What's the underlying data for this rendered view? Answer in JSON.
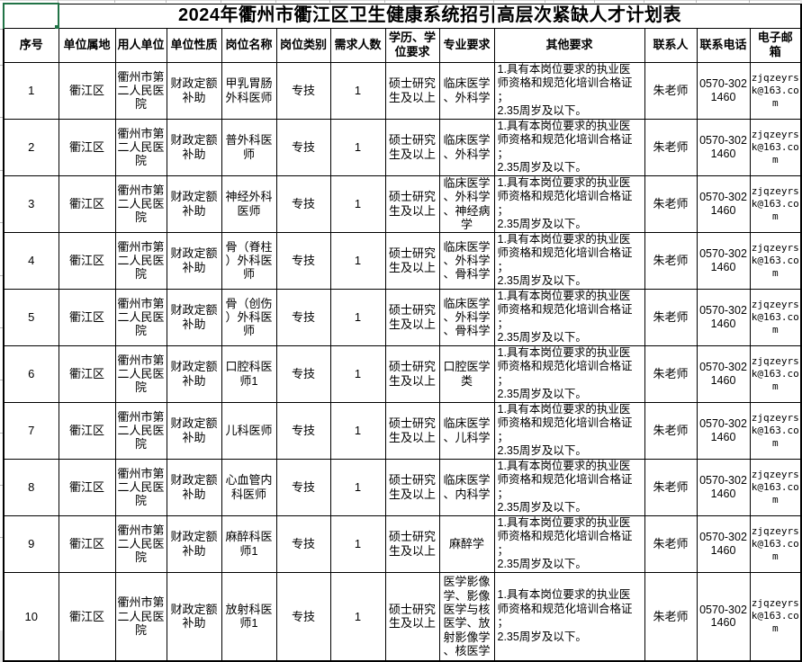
{
  "title": "2024年衢州市衢江区卫生健康系统招引高层次紧缺人才计划表",
  "selected_cell_value": "",
  "colors": {
    "selection_border_green": "#217346",
    "table_border": "#000000",
    "sheet_gridline_gray": "#b9b9b9"
  },
  "columns": [
    "序号",
    "单位属地",
    "用人单位",
    "单位性质",
    "岗位名称",
    "岗位类别",
    "需求人数",
    "学历、学\n位要求",
    "专业要求",
    "其他要求",
    "联系人",
    "联系电话",
    "电子邮箱"
  ],
  "rows": [
    {
      "no": "1",
      "area": "衢江区",
      "employer": "衢州市第\n二人民医\n院",
      "nature": "财政定额\n补助",
      "position": "甲乳胃肠\n外科医师",
      "category": "专技",
      "count": "1",
      "education": "硕士研究\n生及以上",
      "major": "临床医学\n、外科学",
      "other": "1.具有本岗位要求的执业医\n师资格和规范化培训合格证\n；\n2.35周岁及以下。",
      "contact": "朱老师",
      "phone": "0570-302\n1460",
      "email": "zjqzeyrs\nk@163.co\nm"
    },
    {
      "no": "2",
      "area": "衢江区",
      "employer": "衢州市第\n二人民医\n院",
      "nature": "财政定额\n补助",
      "position": "普外科医\n师",
      "category": "专技",
      "count": "1",
      "education": "硕士研究\n生及以上",
      "major": "临床医学\n、外科学",
      "other": "1.具有本岗位要求的执业医\n师资格和规范化培训合格证\n；\n2.35周岁及以下。",
      "contact": "朱老师",
      "phone": "0570-302\n1460",
      "email": "zjqzeyrs\nk@163.co\nm"
    },
    {
      "no": "3",
      "area": "衢江区",
      "employer": "衢州市第\n二人民医\n院",
      "nature": "财政定额\n补助",
      "position": "神经外科\n医师",
      "category": "专技",
      "count": "1",
      "education": "硕士研究\n生及以上",
      "major": "临床医学\n、外科学\n、神经病\n学",
      "other": "1.具有本岗位要求的执业医\n师资格和规范化培训合格证\n；\n2.35周岁及以下。",
      "contact": "朱老师",
      "phone": "0570-302\n1460",
      "email": "zjqzeyrs\nk@163.co\nm"
    },
    {
      "no": "4",
      "area": "衢江区",
      "employer": "衢州市第\n二人民医\n院",
      "nature": "财政定额\n补助",
      "position": "骨（脊柱\n）外科医\n师",
      "category": "专技",
      "count": "1",
      "education": "硕士研究\n生及以上",
      "major": "临床医学\n、外科学\n、骨科学",
      "other": "1.具有本岗位要求的执业医\n师资格和规范化培训合格证\n；\n2.35周岁及以下。",
      "contact": "朱老师",
      "phone": "0570-302\n1460",
      "email": "zjqzeyrs\nk@163.co\nm"
    },
    {
      "no": "5",
      "area": "衢江区",
      "employer": "衢州市第\n二人民医\n院",
      "nature": "财政定额\n补助",
      "position": "骨（创伤\n）外科医\n师",
      "category": "专技",
      "count": "1",
      "education": "硕士研究\n生及以上",
      "major": "临床医学\n、外科学\n、骨科学",
      "other": "1.具有本岗位要求的执业医\n师资格和规范化培训合格证\n；\n2.35周岁及以下。",
      "contact": "朱老师",
      "phone": "0570-302\n1460",
      "email": "zjqzeyrs\nk@163.co\nm"
    },
    {
      "no": "6",
      "area": "衢江区",
      "employer": "衢州市第\n二人民医\n院",
      "nature": "财政定额\n补助",
      "position": "口腔科医\n师1",
      "category": "专技",
      "count": "1",
      "education": "硕士研究\n生及以上",
      "major": "口腔医学\n类",
      "other": "1.具有本岗位要求的执业医\n师资格和规范化培训合格证\n；\n2.35周岁及以下。",
      "contact": "朱老师",
      "phone": "0570-302\n1460",
      "email": "zjqzeyrs\nk@163.co\nm"
    },
    {
      "no": "7",
      "area": "衢江区",
      "employer": "衢州市第\n二人民医\n院",
      "nature": "财政定额\n补助",
      "position": "儿科医师",
      "category": "专技",
      "count": "1",
      "education": "硕士研究\n生及以上",
      "major": "临床医学\n、儿科学",
      "other": "1.具有本岗位要求的执业医\n师资格和规范化培训合格证\n；\n2.35周岁及以下。",
      "contact": "朱老师",
      "phone": "0570-302\n1460",
      "email": "zjqzeyrs\nk@163.co\nm"
    },
    {
      "no": "8",
      "area": "衢江区",
      "employer": "衢州市第\n二人民医\n院",
      "nature": "财政定额\n补助",
      "position": "心血管内\n科医师",
      "category": "专技",
      "count": "1",
      "education": "硕士研究\n生及以上",
      "major": "临床医学\n、内科学",
      "other": "1.具有本岗位要求的执业医\n师资格和规范化培训合格证\n；\n2.35周岁及以下。",
      "contact": "朱老师",
      "phone": "0570-302\n1460",
      "email": "zjqzeyrs\nk@163.co\nm"
    },
    {
      "no": "9",
      "area": "衢江区",
      "employer": "衢州市第\n二人民医\n院",
      "nature": "财政定额\n补助",
      "position": "麻醉科医\n师1",
      "category": "专技",
      "count": "1",
      "education": "硕士研究\n生及以上",
      "major": "麻醉学",
      "other": "1.具有本岗位要求的执业医\n师资格和规范化培训合格证\n；\n2.35周岁及以下。",
      "contact": "朱老师",
      "phone": "0570-302\n1460",
      "email": "zjqzeyrs\nk@163.co\nm"
    },
    {
      "no": "10",
      "area": "衢江区",
      "employer": "衢州市第\n二人民医\n院",
      "nature": "财政定额\n补助",
      "position": "放射科医\n师1",
      "category": "专技",
      "count": "1",
      "education": "硕士研究\n生及以上",
      "major": "医学影像\n学、影像\n医学与核\n医学、放\n射影像学\n、核医学",
      "other": "1.具有本岗位要求的执业医\n师资格和规范化培训合格证\n；\n2.35周岁及以下。",
      "contact": "朱老师",
      "phone": "0570-302\n1460",
      "email": "zjqzeyrs\nk@163.co\nm"
    }
  ]
}
